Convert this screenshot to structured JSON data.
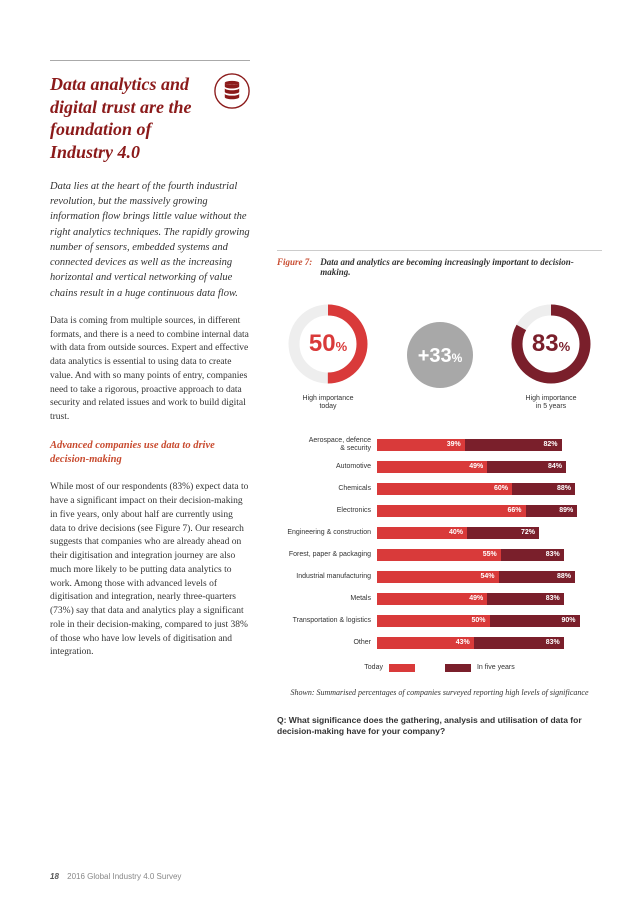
{
  "colors": {
    "brand_dark_red": "#8b1a1a",
    "brand_red": "#d93a3a",
    "brand_orange": "#c84b2f",
    "grey_circle": "#a8a8a8",
    "bar_future": "#7a1f2b",
    "bar_today": "#d93a3a",
    "rule": "#cccccc"
  },
  "left": {
    "headline": "Data analytics and digital trust are the foundation of Industry 4.0",
    "intro": "Data lies at the heart of the fourth industrial revolution, but the massively growing information flow brings little value without the right analytics techniques. The rapidly growing number of sensors, embedded systems and connected devices as well as the increasing horizontal and vertical networking of value chains result in a huge continuous data flow.",
    "para1": "Data is coming from multiple sources, in different formats, and there is a need to combine internal data with data from outside sources. Expert and effective data analytics is essential to using data to create value. And with so many points of entry, companies need to take a rigorous, proactive approach to data security and related issues and work to build digital trust.",
    "subhead": "Advanced companies use data to drive decision-making",
    "para2": "While most of our respondents (83%) expect data to have a significant impact on their decision-making in five years, only about half are currently using data to drive decisions (see Figure 7). Our research suggests that companies who are already ahead on their digitisation and integration journey are also much more likely to be putting data analytics to work.  Among those with advanced levels of digitisation and integration, nearly three-quarters (73%) say that data and analytics play a significant role in their decision-making, compared to just 38% of those who have low levels of digitisation and integration."
  },
  "figure": {
    "label": "Figure 7:",
    "title": "Data and analytics are becoming increasingly important to decision-making.",
    "donuts": {
      "today": {
        "value": 50,
        "display": "50",
        "pctlabel": "%",
        "caption": "High importance\ntoday",
        "ring_color": "#d93a3a",
        "text_color": "#d93a3a"
      },
      "delta": {
        "value": 33,
        "display": "+33",
        "pctlabel": "%",
        "fill": "#a8a8a8",
        "text_color": "#ffffff"
      },
      "future": {
        "value": 83,
        "display": "83",
        "pctlabel": "%",
        "caption": "High importance\nin 5 years",
        "ring_color": "#7a1f2b",
        "text_color": "#7a1f2b"
      }
    },
    "bars": {
      "max": 100,
      "today_color": "#d93a3a",
      "future_color": "#7a1f2b",
      "rows": [
        {
          "label": "Aerospace, defence\n& security",
          "today": 39,
          "future": 82
        },
        {
          "label": "Automotive",
          "today": 49,
          "future": 84
        },
        {
          "label": "Chemicals",
          "today": 60,
          "future": 88
        },
        {
          "label": "Electronics",
          "today": 66,
          "future": 89
        },
        {
          "label": "Engineering & construction",
          "today": 40,
          "future": 72
        },
        {
          "label": "Forest, paper & packaging",
          "today": 55,
          "future": 83
        },
        {
          "label": "Industrial manufacturing",
          "today": 54,
          "future": 88
        },
        {
          "label": "Metals",
          "today": 49,
          "future": 83
        },
        {
          "label": "Transportation & logistics",
          "today": 50,
          "future": 90
        },
        {
          "label": "Other",
          "today": 43,
          "future": 83
        }
      ]
    },
    "legend": {
      "today": "Today",
      "future": "In five years"
    },
    "shown": "Shown: Summarised percentages of companies surveyed reporting high levels of significance",
    "question": "Q: What significance does the gathering, analysis and utilisation of data for decision-making have for your company?"
  },
  "footer": {
    "page": "18",
    "title": "2016 Global Industry 4.0 Survey"
  }
}
